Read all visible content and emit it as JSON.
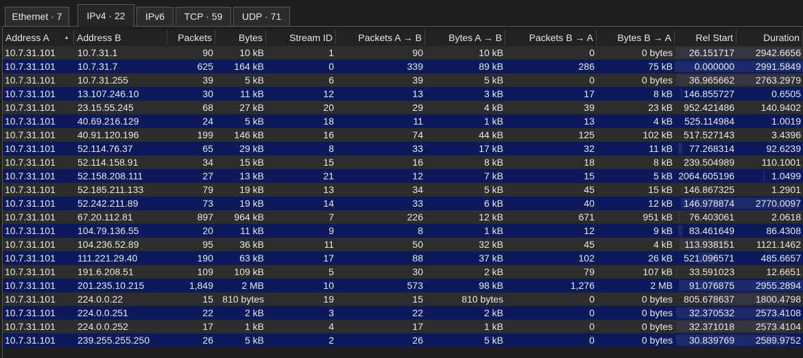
{
  "tabs": [
    {
      "label": "Ethernet · 7",
      "active": false
    },
    {
      "label": "IPv4 · 22",
      "active": true
    },
    {
      "label": "IPv6",
      "active": false
    },
    {
      "label": "TCP · 59",
      "active": false
    },
    {
      "label": "UDP · 71",
      "active": false
    }
  ],
  "columns": [
    "Address A",
    "Address B",
    "Packets",
    "Bytes",
    "Stream ID",
    "Packets A → B",
    "Bytes A → B",
    "Packets B → A",
    "Bytes B → A",
    "Rel Start",
    "Duration"
  ],
  "sort": {
    "column": "Address A",
    "direction": "ascending"
  },
  "rows": [
    [
      "10.7.31.101",
      "10.7.31.1",
      "90",
      "10 kB",
      "1",
      "90",
      "10 kB",
      "0",
      "0 bytes",
      "26.151717",
      "2942.6656"
    ],
    [
      "10.7.31.101",
      "10.7.31.7",
      "625",
      "164 kB",
      "0",
      "339",
      "89 kB",
      "286",
      "75 kB",
      "0.000000",
      "2991.5849"
    ],
    [
      "10.7.31.101",
      "10.7.31.255",
      "39",
      "5 kB",
      "6",
      "39",
      "5 kB",
      "0",
      "0 bytes",
      "36.965662",
      "2763.2979"
    ],
    [
      "10.7.31.101",
      "13.107.246.10",
      "30",
      "11 kB",
      "12",
      "13",
      "3 kB",
      "17",
      "8 kB",
      "146.855727",
      "0.6505"
    ],
    [
      "10.7.31.101",
      "23.15.55.245",
      "68",
      "27 kB",
      "20",
      "29",
      "4 kB",
      "39",
      "23 kB",
      "952.421486",
      "140.9402"
    ],
    [
      "10.7.31.101",
      "40.69.216.129",
      "24",
      "5 kB",
      "18",
      "11",
      "1 kB",
      "13",
      "4 kB",
      "525.114984",
      "1.0019"
    ],
    [
      "10.7.31.101",
      "40.91.120.196",
      "199",
      "146 kB",
      "16",
      "74",
      "44 kB",
      "125",
      "102 kB",
      "517.527143",
      "3.4396"
    ],
    [
      "10.7.31.101",
      "52.114.76.37",
      "65",
      "29 kB",
      "8",
      "33",
      "17 kB",
      "32",
      "11 kB",
      "77.268314",
      "92.6239"
    ],
    [
      "10.7.31.101",
      "52.114.158.91",
      "34",
      "15 kB",
      "15",
      "16",
      "8 kB",
      "18",
      "8 kB",
      "239.504989",
      "110.1001"
    ],
    [
      "10.7.31.101",
      "52.158.208.111",
      "27",
      "13 kB",
      "21",
      "12",
      "7 kB",
      "15",
      "5 kB",
      "2064.605196",
      "1.0499"
    ],
    [
      "10.7.31.101",
      "52.185.211.133",
      "79",
      "19 kB",
      "13",
      "34",
      "5 kB",
      "45",
      "15 kB",
      "146.867325",
      "1.2901"
    ],
    [
      "10.7.31.101",
      "52.242.211.89",
      "73",
      "19 kB",
      "14",
      "33",
      "6 kB",
      "40",
      "12 kB",
      "146.978874",
      "2770.0097"
    ],
    [
      "10.7.31.101",
      "67.20.112.81",
      "897",
      "964 kB",
      "7",
      "226",
      "12 kB",
      "671",
      "951 kB",
      "76.403061",
      "2.0618"
    ],
    [
      "10.7.31.101",
      "104.79.136.55",
      "20",
      "11 kB",
      "9",
      "8",
      "1 kB",
      "12",
      "9 kB",
      "83.461649",
      "86.4308"
    ],
    [
      "10.7.31.101",
      "104.236.52.89",
      "95",
      "36 kB",
      "11",
      "50",
      "32 kB",
      "45",
      "4 kB",
      "113.938151",
      "1121.1462"
    ],
    [
      "10.7.31.101",
      "111.221.29.40",
      "190",
      "63 kB",
      "17",
      "88",
      "37 kB",
      "102",
      "26 kB",
      "521.096571",
      "485.6657"
    ],
    [
      "10.7.31.101",
      "191.6.208.51",
      "109",
      "109 kB",
      "5",
      "30",
      "2 kB",
      "79",
      "107 kB",
      "33.591023",
      "12.6651"
    ],
    [
      "10.7.31.101",
      "201.235.10.215",
      "1,849",
      "2 MB",
      "10",
      "573",
      "98 kB",
      "1,276",
      "2 MB",
      "91.076875",
      "2955.2894"
    ],
    [
      "10.7.31.101",
      "224.0.0.22",
      "15",
      "810 bytes",
      "19",
      "15",
      "810 bytes",
      "0",
      "0 bytes",
      "805.678637",
      "1800.4798"
    ],
    [
      "10.7.31.101",
      "224.0.0.251",
      "22",
      "2 kB",
      "3",
      "22",
      "2 kB",
      "0",
      "0 bytes",
      "32.370532",
      "2573.4108"
    ],
    [
      "10.7.31.101",
      "224.0.0.252",
      "17",
      "1 kB",
      "4",
      "17",
      "1 kB",
      "0",
      "0 bytes",
      "32.371018",
      "2573.4104"
    ],
    [
      "10.7.31.101",
      "239.255.255.250",
      "26",
      "5 kB",
      "2",
      "26",
      "5 kB",
      "0",
      "0 bytes",
      "30.839769",
      "2589.9752"
    ]
  ]
}
